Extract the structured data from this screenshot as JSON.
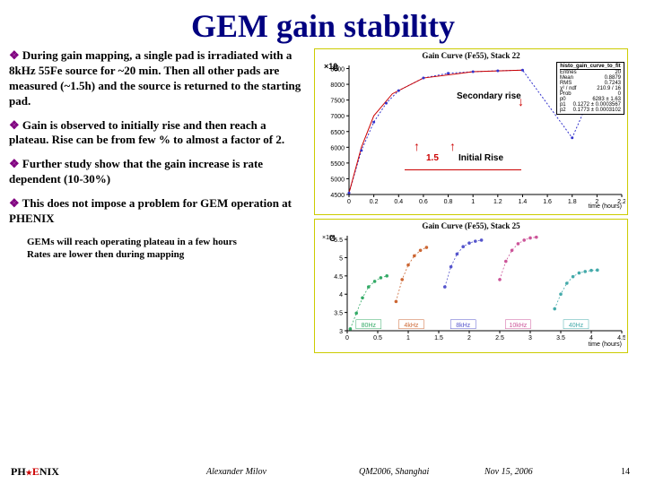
{
  "title": "GEM gain stability",
  "bullets": {
    "b1": "During gain mapping, a single pad is irradiated with a 8kHz 55Fe source for ~20 min. Then all other pads are measured (~1.5h) and the source is returned to the starting pad.",
    "b2": "Gain is observed to initially rise and then reach a plateau. Rise can be from few % to almost a factor of 2.",
    "b3": "Further study show that the gain increase is rate dependent (10-30%)",
    "b4": "This does not impose a problem for GEM operation at PHENIX",
    "sub1": "GEMs will reach operating plateau in a few hours",
    "sub2": "Rates are lower then during mapping"
  },
  "chart1": {
    "title": "Gain Curve (Fe55), Stack 22",
    "statsbox_header": "histo_gain_curve_to_fit",
    "stats": {
      "entries_l": "Entries",
      "entries_v": "20",
      "mean_l": "Mean",
      "mean_v": "0.8879",
      "rms_l": "RMS",
      "rms_v": "0.7243",
      "chi_l": "χ² / ndf",
      "chi_v": "210.9 / 16",
      "prob_l": "Prob",
      "prob_v": "0",
      "p0_l": "p0",
      "p0_v": "6283 ± 1.63",
      "p1_l": "p1",
      "p1_v": "0.1272 ± 0.0003567",
      "p2_l": "p2",
      "p2_v": "0.1773 ± 0.0003102"
    },
    "yticks": [
      "4500",
      "5000",
      "5500",
      "6000",
      "6500",
      "7000",
      "7500",
      "8000",
      "8500"
    ],
    "xticks": [
      "0",
      "0.2",
      "0.4",
      "0.6",
      "0.8",
      "1",
      "1.2",
      "1.4",
      "1.6",
      "1.8",
      "2",
      "2.2"
    ],
    "xlabel": "time (hours)",
    "ylabelG": "G",
    "curve": [
      [
        0,
        4550
      ],
      [
        0.1,
        5900
      ],
      [
        0.2,
        6800
      ],
      [
        0.3,
        7400
      ],
      [
        0.4,
        7800
      ],
      [
        0.6,
        8200
      ],
      [
        0.8,
        8350
      ],
      [
        1.0,
        8400
      ],
      [
        1.2,
        8430
      ],
      [
        1.4,
        8450
      ],
      [
        1.8,
        6300
      ],
      [
        1.9,
        7200
      ],
      [
        2.0,
        7800
      ],
      [
        2.1,
        8150
      ]
    ],
    "curve_color": "#3333cc",
    "fit_color": "#cc0000",
    "annot_secondary": "Secondary rise",
    "annot_initial_top": "1.5",
    "annot_initial_right": "Initial Rise"
  },
  "chart2": {
    "title": "Gain Curve (Fe55), Stack 25",
    "yticks": [
      "3",
      "3.5",
      "4",
      "4.5",
      "5",
      "5.5"
    ],
    "ylabelG": "G",
    "ypow": "×10²",
    "xticks": [
      "0",
      "0.5",
      "1",
      "1.5",
      "2",
      "2.5",
      "3",
      "3.5",
      "4",
      "4.5"
    ],
    "xlabel": "time (hours)",
    "rate_labels": [
      "80Hz",
      "4kHz",
      "8kHz",
      "10kHz",
      "40Hz"
    ],
    "rate_colors": [
      "#33aa66",
      "#cc6633",
      "#5555cc",
      "#cc5599",
      "#44aaaa"
    ],
    "series": [
      {
        "color": "#33aa66",
        "pts": [
          [
            0.05,
            305
          ],
          [
            0.15,
            348
          ],
          [
            0.25,
            390
          ],
          [
            0.35,
            420
          ],
          [
            0.45,
            435
          ],
          [
            0.55,
            445
          ],
          [
            0.65,
            450
          ]
        ]
      },
      {
        "color": "#cc6633",
        "pts": [
          [
            0.8,
            380
          ],
          [
            0.9,
            440
          ],
          [
            1.0,
            480
          ],
          [
            1.1,
            505
          ],
          [
            1.2,
            520
          ],
          [
            1.3,
            528
          ]
        ]
      },
      {
        "color": "#5555cc",
        "pts": [
          [
            1.6,
            420
          ],
          [
            1.7,
            475
          ],
          [
            1.8,
            510
          ],
          [
            1.9,
            530
          ],
          [
            2.0,
            540
          ],
          [
            2.1,
            545
          ],
          [
            2.2,
            548
          ]
        ]
      },
      {
        "color": "#cc5599",
        "pts": [
          [
            2.5,
            440
          ],
          [
            2.6,
            490
          ],
          [
            2.7,
            520
          ],
          [
            2.8,
            538
          ],
          [
            2.9,
            548
          ],
          [
            3.0,
            554
          ],
          [
            3.1,
            556
          ]
        ]
      },
      {
        "color": "#44aaaa",
        "pts": [
          [
            3.4,
            360
          ],
          [
            3.5,
            400
          ],
          [
            3.6,
            430
          ],
          [
            3.7,
            448
          ],
          [
            3.8,
            458
          ],
          [
            3.9,
            462
          ],
          [
            4.0,
            465
          ],
          [
            4.1,
            466
          ]
        ]
      }
    ]
  },
  "footer": {
    "logo_pre": "PH",
    "logo_e": "E",
    "logo_post": "NIX",
    "author": "Alexander Milov",
    "conference": "QM2006, Shanghai",
    "date": "Nov 15, 2006",
    "page": "14"
  },
  "colors": {
    "title": "#000080",
    "bullet_marker": "#800080",
    "chart_border": "#cccc00"
  }
}
